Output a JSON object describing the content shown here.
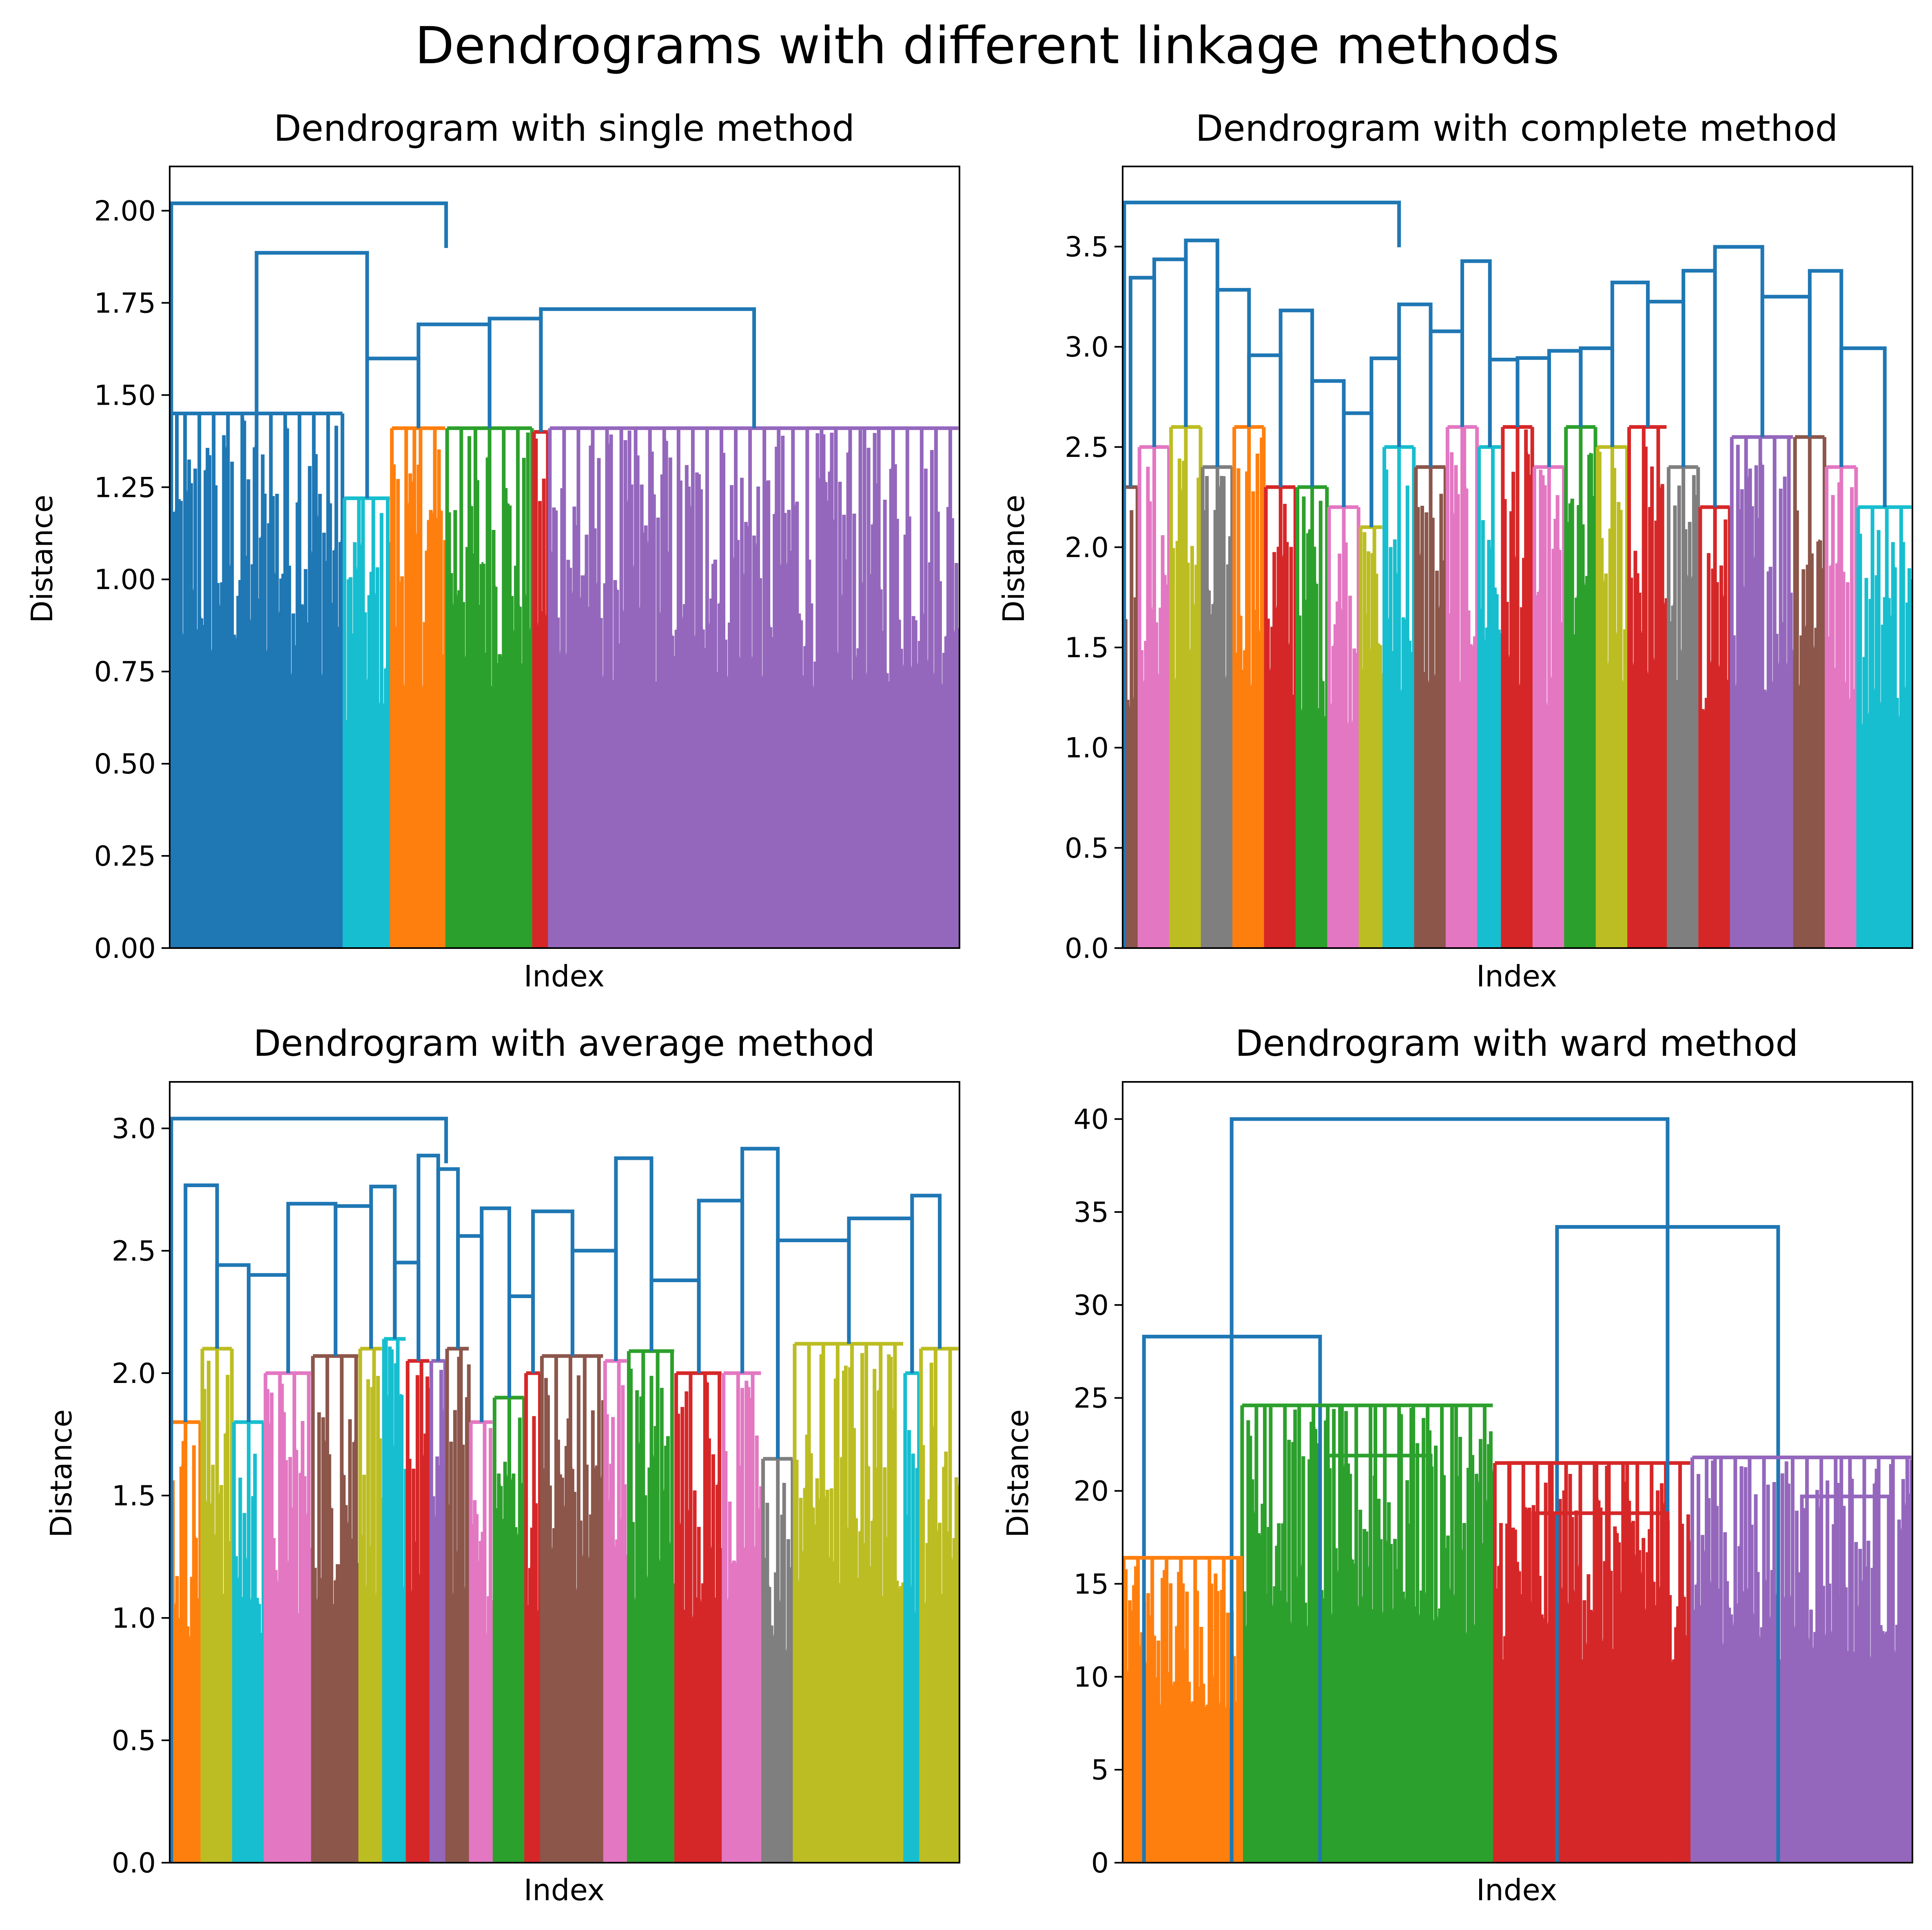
{
  "figure": {
    "suptitle": "Dendrograms with different linkage methods"
  },
  "chart_data": [
    {
      "type": "dendrogram",
      "title": "Dendrogram with single method",
      "xlabel": "Index",
      "ylabel": "Distance",
      "ylim": [
        0,
        2.12
      ],
      "yticks": [
        0.0,
        0.25,
        0.5,
        0.75,
        1.0,
        1.25,
        1.5,
        1.75,
        2.0
      ],
      "ytick_labels": [
        "0.00",
        "0.25",
        "0.50",
        "0.75",
        "1.00",
        "1.25",
        "1.50",
        "1.75",
        "2.00"
      ],
      "max_merge_distance": 2.02,
      "clusters": [
        {
          "color": "#1f77b4",
          "x_range": [
            0.0,
            0.22
          ],
          "max_height": 1.45
        },
        {
          "color": "#17becf",
          "x_range": [
            0.22,
            0.28
          ],
          "max_height": 1.22
        },
        {
          "color": "#ff7f0e",
          "x_range": [
            0.28,
            0.35
          ],
          "max_height": 1.41
        },
        {
          "color": "#2ca02c",
          "x_range": [
            0.35,
            0.46
          ],
          "max_height": 1.41
        },
        {
          "color": "#d62728",
          "x_range": [
            0.46,
            0.48
          ],
          "max_height": 1.4
        },
        {
          "color": "#9467bd",
          "x_range": [
            0.48,
            1.0
          ],
          "max_height": 1.41
        }
      ]
    },
    {
      "type": "dendrogram",
      "title": "Dendrogram with complete method",
      "xlabel": "Index",
      "ylabel": "Distance",
      "ylim": [
        0,
        3.9
      ],
      "yticks": [
        0.0,
        0.5,
        1.0,
        1.5,
        2.0,
        2.5,
        3.0,
        3.5
      ],
      "ytick_labels": [
        "0.0",
        "0.5",
        "1.0",
        "1.5",
        "2.0",
        "2.5",
        "3.0",
        "3.5"
      ],
      "max_merge_distance": 3.72,
      "clusters": [
        {
          "color": "#8c564b",
          "x_range": [
            0.0,
            0.02
          ],
          "max_height": 2.3
        },
        {
          "color": "#e377c2",
          "x_range": [
            0.02,
            0.06
          ],
          "max_height": 2.5
        },
        {
          "color": "#bcbd22",
          "x_range": [
            0.06,
            0.1
          ],
          "max_height": 2.6
        },
        {
          "color": "#7f7f7f",
          "x_range": [
            0.1,
            0.14
          ],
          "max_height": 2.4
        },
        {
          "color": "#ff7f0e",
          "x_range": [
            0.14,
            0.18
          ],
          "max_height": 2.6
        },
        {
          "color": "#d62728",
          "x_range": [
            0.18,
            0.22
          ],
          "max_height": 2.3
        },
        {
          "color": "#2ca02c",
          "x_range": [
            0.22,
            0.26
          ],
          "max_height": 2.3
        },
        {
          "color": "#e377c2",
          "x_range": [
            0.26,
            0.3
          ],
          "max_height": 2.2
        },
        {
          "color": "#bcbd22",
          "x_range": [
            0.3,
            0.33
          ],
          "max_height": 2.1
        },
        {
          "color": "#17becf",
          "x_range": [
            0.33,
            0.37
          ],
          "max_height": 2.5
        },
        {
          "color": "#8c564b",
          "x_range": [
            0.37,
            0.41
          ],
          "max_height": 2.4
        },
        {
          "color": "#e377c2",
          "x_range": [
            0.41,
            0.45
          ],
          "max_height": 2.6
        },
        {
          "color": "#17becf",
          "x_range": [
            0.45,
            0.48
          ],
          "max_height": 2.5
        },
        {
          "color": "#d62728",
          "x_range": [
            0.48,
            0.52
          ],
          "max_height": 2.6
        },
        {
          "color": "#e377c2",
          "x_range": [
            0.52,
            0.56
          ],
          "max_height": 2.4
        },
        {
          "color": "#2ca02c",
          "x_range": [
            0.56,
            0.6
          ],
          "max_height": 2.6
        },
        {
          "color": "#bcbd22",
          "x_range": [
            0.6,
            0.64
          ],
          "max_height": 2.5
        },
        {
          "color": "#d62728",
          "x_range": [
            0.64,
            0.69
          ],
          "max_height": 2.6
        },
        {
          "color": "#7f7f7f",
          "x_range": [
            0.69,
            0.73
          ],
          "max_height": 2.4
        },
        {
          "color": "#d62728",
          "x_range": [
            0.73,
            0.77
          ],
          "max_height": 2.2
        },
        {
          "color": "#9467bd",
          "x_range": [
            0.77,
            0.85
          ],
          "max_height": 2.55
        },
        {
          "color": "#8c564b",
          "x_range": [
            0.85,
            0.89
          ],
          "max_height": 2.55
        },
        {
          "color": "#e377c2",
          "x_range": [
            0.89,
            0.93
          ],
          "max_height": 2.4
        },
        {
          "color": "#17becf",
          "x_range": [
            0.93,
            1.0
          ],
          "max_height": 2.2
        }
      ]
    },
    {
      "type": "dendrogram",
      "title": "Dendrogram with average method",
      "xlabel": "Index",
      "ylabel": "Distance",
      "ylim": [
        0,
        3.19
      ],
      "yticks": [
        0.0,
        0.5,
        1.0,
        1.5,
        2.0,
        2.5,
        3.0
      ],
      "ytick_labels": [
        "0.0",
        "0.5",
        "1.0",
        "1.5",
        "2.0",
        "2.5",
        "3.0"
      ],
      "max_merge_distance": 3.04,
      "clusters": [
        {
          "color": "#ff7f0e",
          "x_range": [
            0.0,
            0.04
          ],
          "max_height": 1.8
        },
        {
          "color": "#bcbd22",
          "x_range": [
            0.04,
            0.08
          ],
          "max_height": 2.1
        },
        {
          "color": "#17becf",
          "x_range": [
            0.08,
            0.12
          ],
          "max_height": 1.8
        },
        {
          "color": "#e377c2",
          "x_range": [
            0.12,
            0.18
          ],
          "max_height": 2.0
        },
        {
          "color": "#8c564b",
          "x_range": [
            0.18,
            0.24
          ],
          "max_height": 2.07
        },
        {
          "color": "#bcbd22",
          "x_range": [
            0.24,
            0.27
          ],
          "max_height": 2.1
        },
        {
          "color": "#17becf",
          "x_range": [
            0.27,
            0.3
          ],
          "max_height": 2.14
        },
        {
          "color": "#d62728",
          "x_range": [
            0.3,
            0.33
          ],
          "max_height": 2.05
        },
        {
          "color": "#9467bd",
          "x_range": [
            0.33,
            0.35
          ],
          "max_height": 2.05
        },
        {
          "color": "#8c564b",
          "x_range": [
            0.35,
            0.38
          ],
          "max_height": 2.1
        },
        {
          "color": "#e377c2",
          "x_range": [
            0.38,
            0.41
          ],
          "max_height": 1.8
        },
        {
          "color": "#2ca02c",
          "x_range": [
            0.41,
            0.45
          ],
          "max_height": 1.9
        },
        {
          "color": "#d62728",
          "x_range": [
            0.45,
            0.47
          ],
          "max_height": 2.0
        },
        {
          "color": "#8c564b",
          "x_range": [
            0.47,
            0.55
          ],
          "max_height": 2.07
        },
        {
          "color": "#e377c2",
          "x_range": [
            0.55,
            0.58
          ],
          "max_height": 2.05
        },
        {
          "color": "#2ca02c",
          "x_range": [
            0.58,
            0.64
          ],
          "max_height": 2.09
        },
        {
          "color": "#d62728",
          "x_range": [
            0.64,
            0.7
          ],
          "max_height": 2.0
        },
        {
          "color": "#e377c2",
          "x_range": [
            0.7,
            0.75
          ],
          "max_height": 2.0
        },
        {
          "color": "#7f7f7f",
          "x_range": [
            0.75,
            0.79
          ],
          "max_height": 1.65
        },
        {
          "color": "#bcbd22",
          "x_range": [
            0.79,
            0.93
          ],
          "max_height": 2.12
        },
        {
          "color": "#17becf",
          "x_range": [
            0.93,
            0.95
          ],
          "max_height": 2.0
        },
        {
          "color": "#bcbd22",
          "x_range": [
            0.95,
            1.0
          ],
          "max_height": 2.1
        }
      ]
    },
    {
      "type": "dendrogram",
      "title": "Dendrogram with ward method",
      "xlabel": "Index",
      "ylabel": "Distance",
      "ylim": [
        0,
        42
      ],
      "yticks": [
        0,
        5,
        10,
        15,
        20,
        25,
        30,
        35,
        40
      ],
      "ytick_labels": [
        "0",
        "5",
        "10",
        "15",
        "20",
        "25",
        "30",
        "35",
        "40"
      ],
      "root_merge": 40.0,
      "merges": [
        {
          "color": "#1f77b4",
          "left_x": 0.138,
          "right_x": 0.69,
          "height": 40.0
        },
        {
          "color": "#1f77b4",
          "left_x": 0.027,
          "right_x": 0.25,
          "height": 28.3
        },
        {
          "color": "#1f77b4",
          "left_x": 0.55,
          "right_x": 0.83,
          "height": 34.2
        },
        {
          "color": "#ff7f0e",
          "left_x": 0.0,
          "right_x": 0.15,
          "height": 16.4
        },
        {
          "color": "#2ca02c",
          "left_x": 0.18,
          "right_x": 0.32,
          "height": 24.6
        },
        {
          "color": "#2ca02c",
          "left_x": 0.26,
          "right_x": 0.39,
          "height": 21.9
        },
        {
          "color": "#d62728",
          "left_x": 0.49,
          "right_x": 0.6,
          "height": 21.5
        },
        {
          "color": "#d62728",
          "left_x": 0.52,
          "right_x": 0.69,
          "height": 18.8
        },
        {
          "color": "#9467bd",
          "left_x": 0.75,
          "right_x": 0.91,
          "height": 21.8
        },
        {
          "color": "#9467bd",
          "left_x": 0.86,
          "right_x": 0.97,
          "height": 19.7
        }
      ],
      "clusters": [
        {
          "color": "#ff7f0e",
          "x_range": [
            0.0,
            0.15
          ],
          "max_height": 16.4
        },
        {
          "color": "#2ca02c",
          "x_range": [
            0.15,
            0.47
          ],
          "max_height": 24.6
        },
        {
          "color": "#d62728",
          "x_range": [
            0.47,
            0.72
          ],
          "max_height": 21.5
        },
        {
          "color": "#9467bd",
          "x_range": [
            0.72,
            1.0
          ],
          "max_height": 21.8
        }
      ]
    }
  ]
}
